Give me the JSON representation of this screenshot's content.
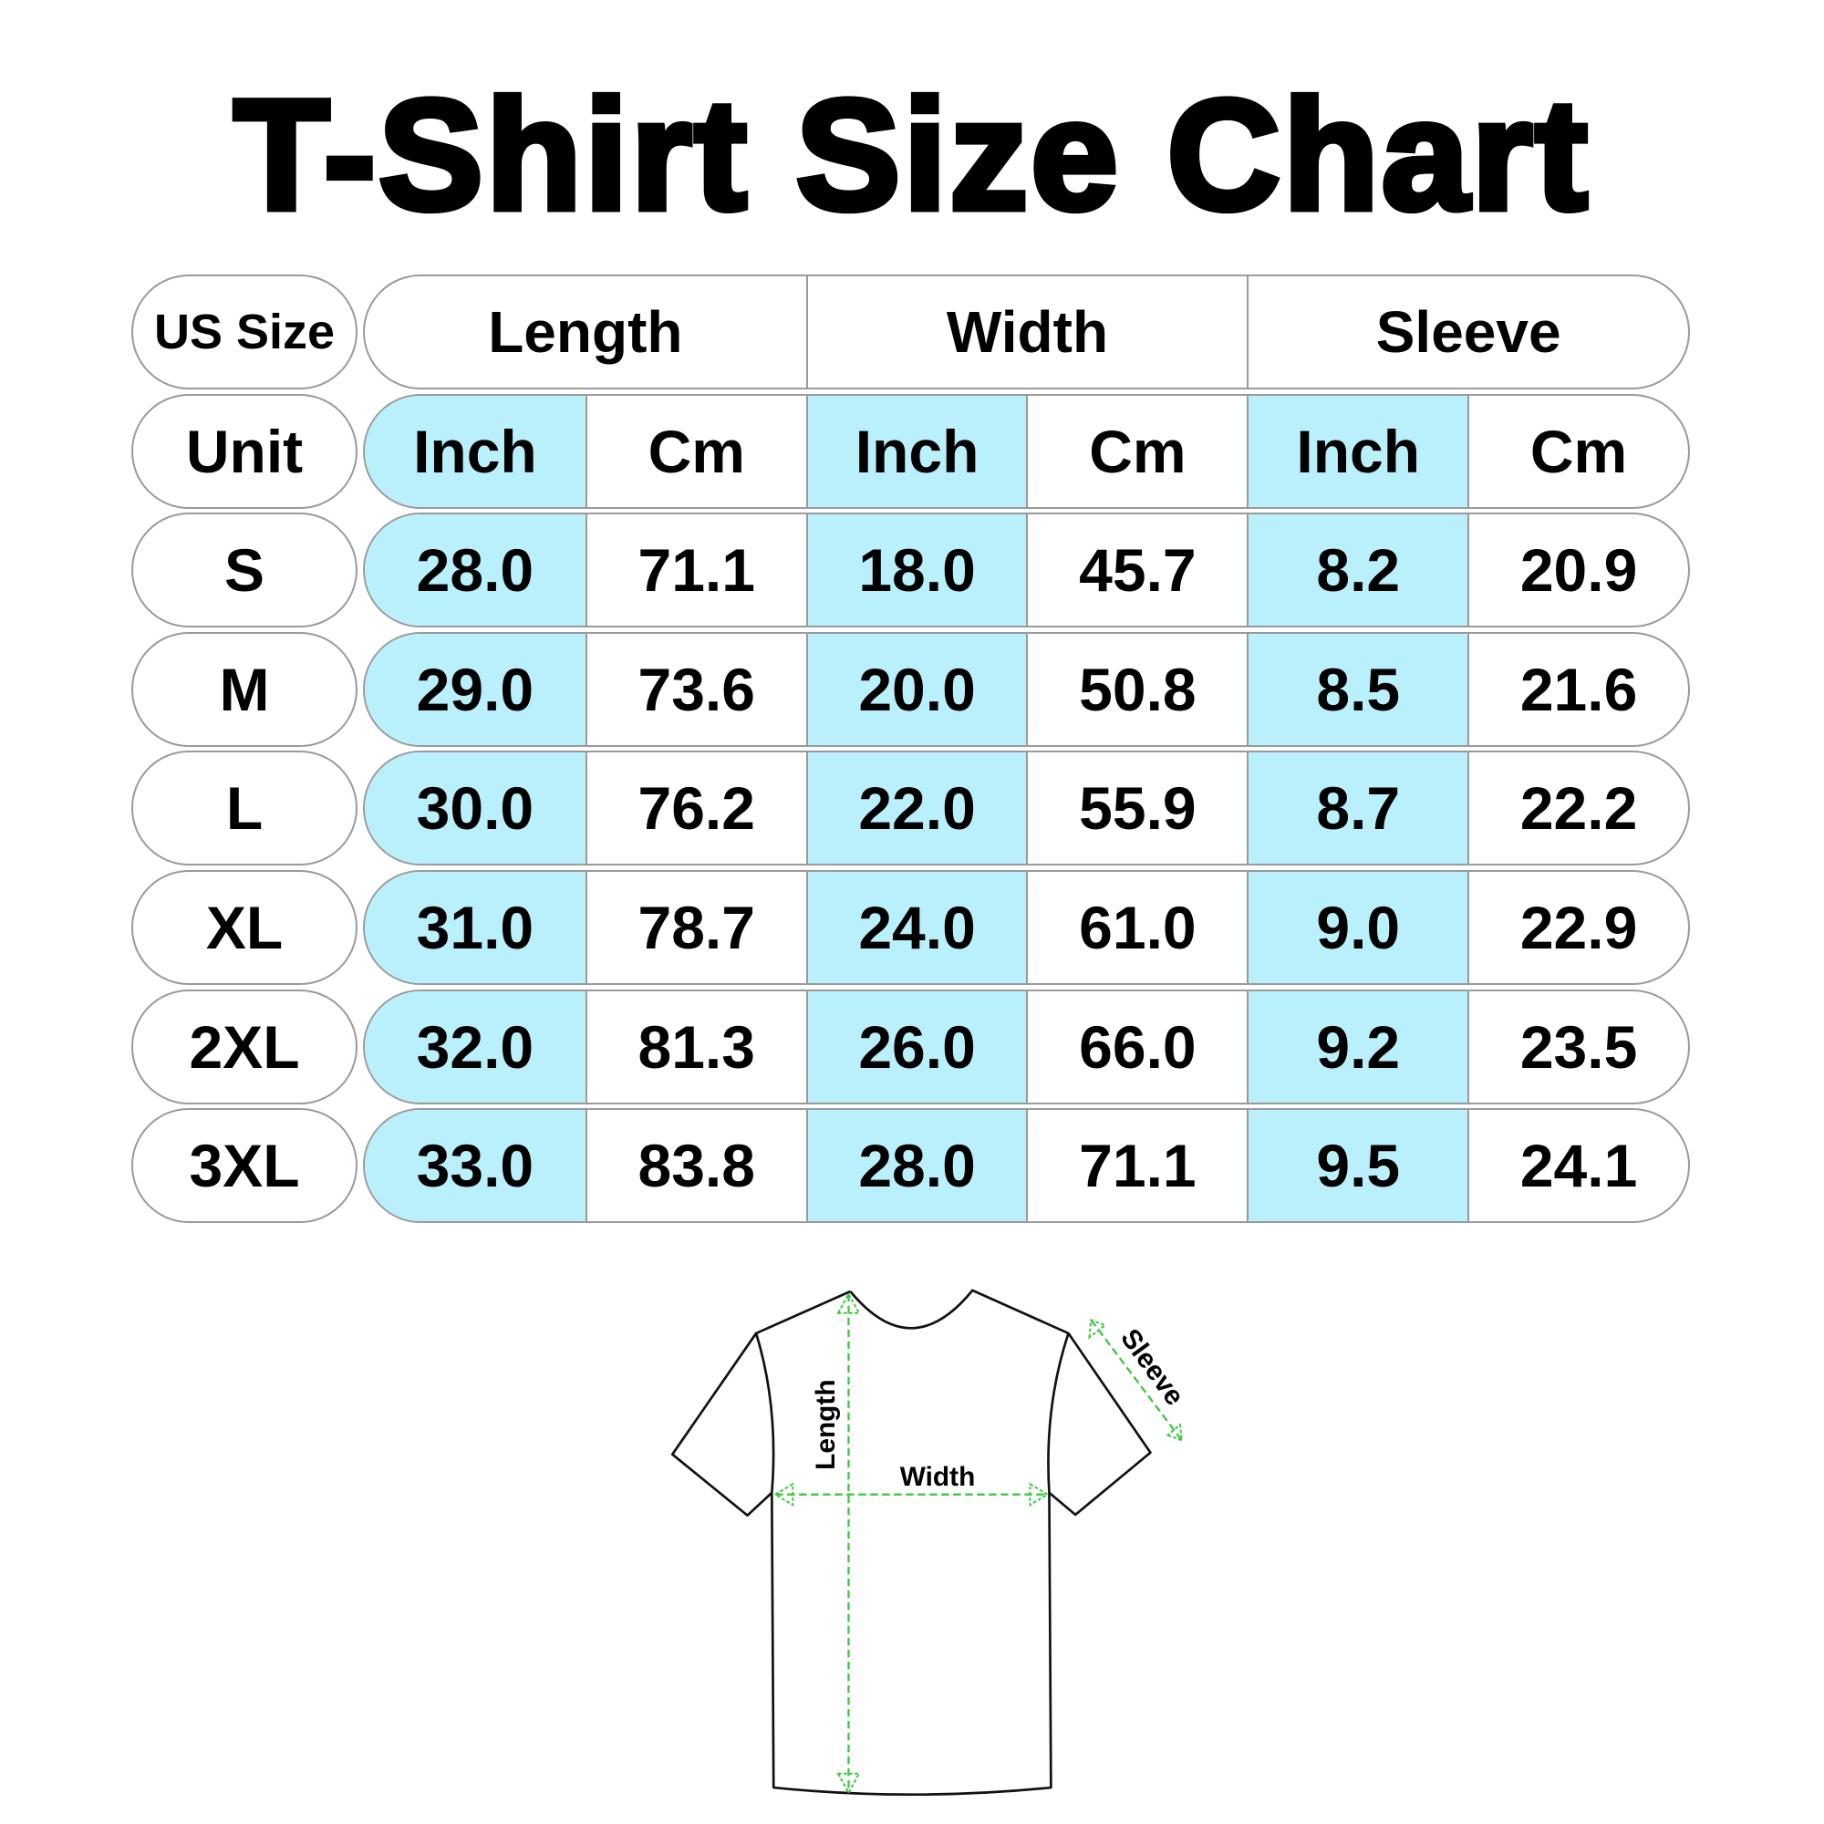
{
  "title": "T-Shirt Size Chart",
  "table": {
    "size_header": "US Size",
    "unit_header": "Unit",
    "groups": [
      "Length",
      "Width",
      "Sleeve"
    ],
    "units": [
      "Inch",
      "Cm",
      "Inch",
      "Cm",
      "Inch",
      "Cm"
    ],
    "rows": [
      {
        "size": "S",
        "values": [
          "28.0",
          "71.1",
          "18.0",
          "45.7",
          "8.2",
          "20.9"
        ]
      },
      {
        "size": "M",
        "values": [
          "29.0",
          "73.6",
          "20.0",
          "50.8",
          "8.5",
          "21.6"
        ]
      },
      {
        "size": "L",
        "values": [
          "30.0",
          "76.2",
          "22.0",
          "55.9",
          "8.7",
          "22.2"
        ]
      },
      {
        "size": "XL",
        "values": [
          "31.0",
          "78.7",
          "24.0",
          "61.0",
          "9.0",
          "22.9"
        ]
      },
      {
        "size": "2XL",
        "values": [
          "32.0",
          "81.3",
          "26.0",
          "66.0",
          "9.2",
          "23.5"
        ]
      },
      {
        "size": "3XL",
        "values": [
          "33.0",
          "83.8",
          "28.0",
          "71.1",
          "9.5",
          "24.1"
        ]
      }
    ],
    "inch_column_color": "#b9f0fc"
  },
  "diagram": {
    "length_label": "Length",
    "width_label": "Width",
    "sleeve_label": "Sleeve",
    "measure_line_color": "#3cc83c"
  }
}
